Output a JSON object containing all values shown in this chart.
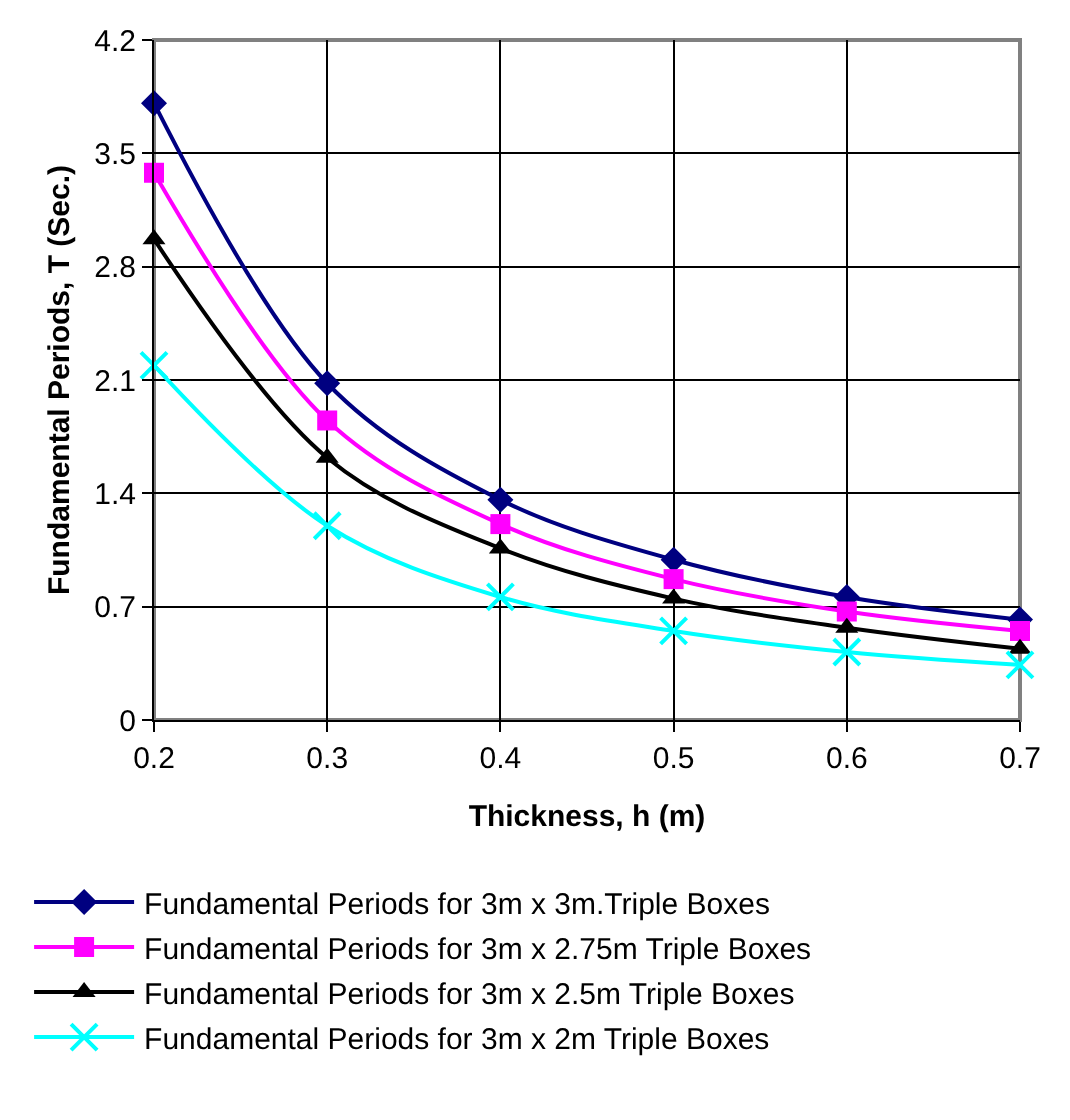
{
  "chart_data": {
    "type": "line",
    "xlabel": "Thickness, h (m)",
    "ylabel": "Fundamental Periods, T (Sec.)",
    "x": [
      0.2,
      0.3,
      0.4,
      0.5,
      0.6,
      0.7
    ],
    "xlim": [
      0.2,
      0.7
    ],
    "xticks": [
      0.2,
      0.3,
      0.4,
      0.5,
      0.6,
      0.7
    ],
    "ylim": [
      0,
      4.2
    ],
    "yticks": [
      0,
      0.7,
      1.4,
      2.1,
      2.8,
      3.5,
      4.2
    ],
    "grid": true,
    "legend": "bottom",
    "series": [
      {
        "name": "Fundamental Periods for 3m x 3m.Triple Boxes",
        "color": "#000080",
        "marker": "diamond",
        "values": [
          3.81,
          2.08,
          1.36,
          0.99,
          0.76,
          0.62
        ]
      },
      {
        "name": "Fundamental Periods for 3m x 2.75m Triple Boxes",
        "color": "#ff00ff",
        "marker": "square",
        "values": [
          3.38,
          1.85,
          1.21,
          0.87,
          0.67,
          0.55
        ]
      },
      {
        "name": "Fundamental Periods for 3m x 2.5m Triple Boxes",
        "color": "#000000",
        "marker": "triangle",
        "values": [
          2.97,
          1.62,
          1.06,
          0.75,
          0.57,
          0.44
        ]
      },
      {
        "name": "Fundamental Periods for 3m x 2m Triple Boxes",
        "color": "#00ffff",
        "marker": "cross",
        "values": [
          2.19,
          1.2,
          0.76,
          0.55,
          0.42,
          0.34
        ]
      }
    ]
  }
}
